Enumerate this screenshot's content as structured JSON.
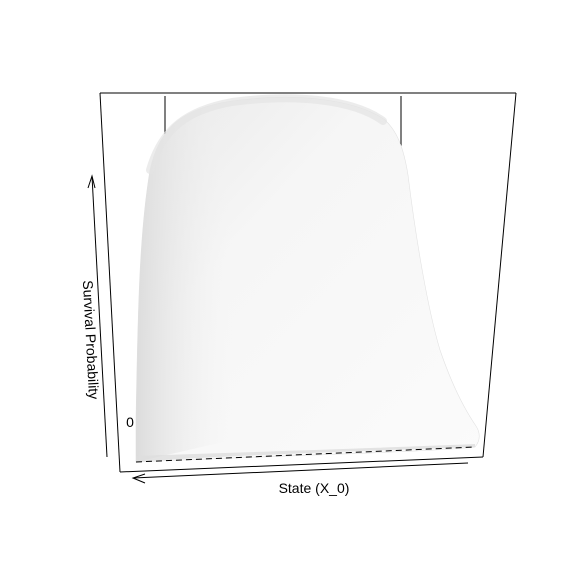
{
  "chart_data": {
    "type": "surface",
    "title": "",
    "xlabel": "State (X_0)",
    "ylabel": "",
    "zlabel": "Survival Probability",
    "zlim": [
      0,
      1
    ],
    "box": true,
    "surface_color": "#f2f2f2",
    "shading": "light grey, lit from front",
    "tick_mark_fragment": "0"
  }
}
